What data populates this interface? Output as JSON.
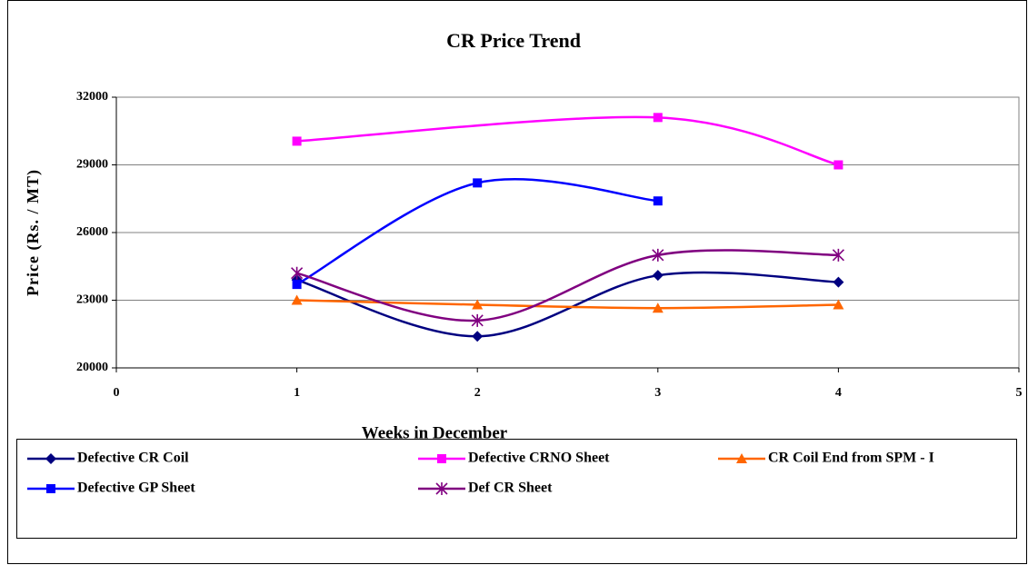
{
  "chart_data": {
    "type": "line",
    "title": "CR Price Trend",
    "x_label": "Weeks in December",
    "y_label": "Price (Rs. / MT)",
    "xlim": [
      0,
      5
    ],
    "xticks": [
      0,
      1,
      2,
      3,
      4,
      5
    ],
    "ylim": [
      20000,
      32000
    ],
    "yticks": [
      20000,
      23000,
      26000,
      29000,
      32000
    ],
    "grid": true,
    "smooth": true,
    "legend": "bottom",
    "series": [
      {
        "name": "Defective CR Coil",
        "color": "#000080",
        "marker": "diamond",
        "x": [
          1,
          2,
          3,
          4
        ],
        "values": [
          23900,
          21400,
          24100,
          23800
        ]
      },
      {
        "name": "Defective CRNO Sheet",
        "color": "#ff00ff",
        "marker": "square",
        "x": [
          1,
          3,
          4
        ],
        "values": [
          30050,
          31100,
          29000
        ]
      },
      {
        "name": "CR Coil End from SPM - I",
        "color": "#ff6600",
        "marker": "triangle",
        "x": [
          1,
          2,
          3,
          4
        ],
        "values": [
          23000,
          22800,
          22650,
          22800
        ]
      },
      {
        "name": "Defective GP Sheet",
        "color": "#0000ff",
        "marker": "square",
        "x": [
          1,
          2,
          3
        ],
        "values": [
          23700,
          28200,
          27400
        ]
      },
      {
        "name": "Def CR Sheet",
        "color": "#800080",
        "marker": "asterisk",
        "x": [
          1,
          2,
          3,
          4
        ],
        "values": [
          24200,
          22100,
          25000,
          25000
        ]
      }
    ]
  }
}
